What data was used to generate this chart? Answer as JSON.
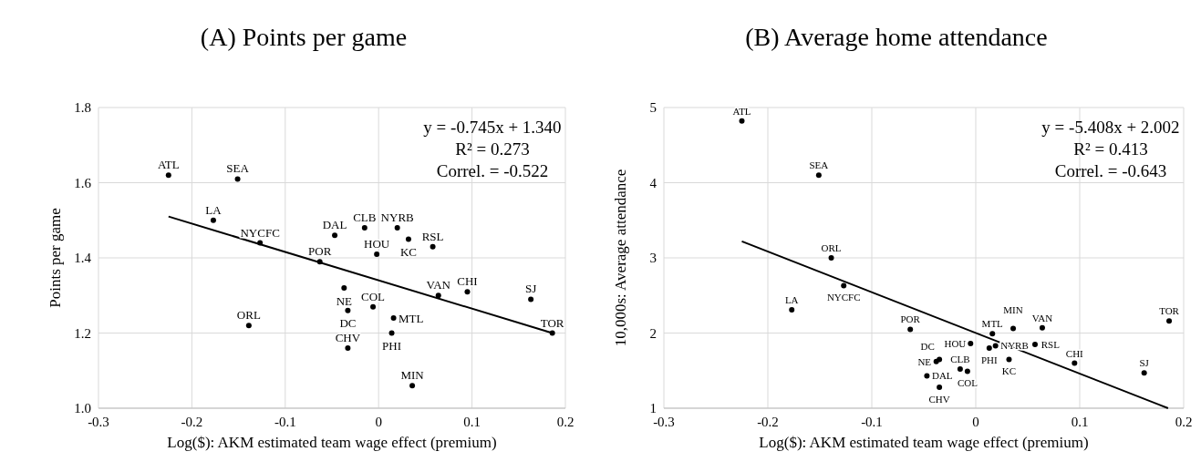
{
  "chart_data": [
    {
      "type": "scatter",
      "title": "(A) Points per game",
      "xlabel": "Log($): AKM estimated team wage effect (premium)",
      "ylabel": "Points per game",
      "xlim": [
        -0.3,
        0.2
      ],
      "xticks": [
        -0.3,
        -0.2,
        -0.1,
        {
          "value": 0,
          "label": "0"
        },
        0.1,
        0.2
      ],
      "ylim": [
        1.0,
        1.8
      ],
      "yticks": [
        {
          "value": 1.0,
          "label": "1.0"
        },
        1.2,
        1.4,
        1.6,
        1.8
      ],
      "grid": true,
      "marker": "circle",
      "annotations": [
        "y = -0.745x + 1.340",
        "R² = 0.273",
        "Correl. = -0.522"
      ],
      "series": [
        {
          "type": "scatter",
          "color": "#000000",
          "x": [
            -0.225,
            -0.151,
            -0.177,
            -0.127,
            -0.139,
            -0.063,
            -0.047,
            -0.015,
            0.02,
            0.032,
            0.058,
            -0.002,
            -0.037,
            -0.033,
            -0.006,
            0.016,
            0.014,
            -0.033,
            0.036,
            0.064,
            0.095,
            0.163,
            0.186
          ],
          "values": [
            1.62,
            1.61,
            1.5,
            1.44,
            1.22,
            1.39,
            1.46,
            1.48,
            1.48,
            1.45,
            1.43,
            1.41,
            1.32,
            1.26,
            1.27,
            1.24,
            1.2,
            1.16,
            1.06,
            1.3,
            1.31,
            1.29,
            1.2
          ],
          "value_labels": [
            "ATL",
            "SEA",
            "LA",
            "NYCFC",
            "ORL",
            "POR",
            "DAL",
            "CLB",
            "NYRB",
            "KC",
            "RSL",
            "HOU",
            "NE",
            "DC",
            "COL",
            "MTL",
            "PHI",
            "CHV",
            "MIN",
            "VAN",
            "CHI",
            "SJ",
            "TOR"
          ]
        },
        {
          "type": "line",
          "color": "#000000",
          "marker": "none",
          "x": [
            -0.225,
            0.186
          ],
          "values": [
            1.51,
            1.2
          ]
        }
      ]
    },
    {
      "type": "scatter",
      "title": "(B) Average home attendance",
      "xlabel": "Log($): AKM estimated team wage effect (premium)",
      "ylabel": "10,000s: Average attendance",
      "xlim": [
        -0.3,
        0.2
      ],
      "xticks": [
        -0.3,
        -0.2,
        -0.1,
        {
          "value": 0,
          "label": "0"
        },
        0.1,
        0.2
      ],
      "ylim": [
        1,
        5
      ],
      "yticks": [
        1,
        2,
        3,
        4,
        5
      ],
      "grid": true,
      "marker": "circle",
      "annotations": [
        "y = -5.408x + 2.002",
        "R² = 0.413",
        "Correl. = -0.643"
      ],
      "series": [
        {
          "type": "scatter",
          "color": "#000000",
          "x": [
            -0.225,
            -0.151,
            -0.177,
            -0.127,
            -0.139,
            -0.063,
            -0.047,
            -0.015,
            0.019,
            0.032,
            0.057,
            -0.005,
            -0.038,
            -0.035,
            -0.008,
            0.016,
            0.013,
            -0.035,
            0.036,
            0.064,
            0.095,
            0.162,
            0.186
          ],
          "values": [
            4.82,
            4.1,
            2.31,
            2.63,
            3.0,
            2.05,
            1.43,
            1.52,
            1.83,
            1.65,
            1.85,
            1.86,
            1.62,
            1.65,
            1.49,
            1.99,
            1.8,
            1.28,
            2.06,
            2.07,
            1.6,
            1.47,
            2.16
          ],
          "value_labels": [
            "ATL",
            "SEA",
            "LA",
            "NYCFC",
            "ORL",
            "POR",
            "DAL",
            "CLB",
            "NYRB",
            "KC",
            "RSL",
            "HOU",
            "NE",
            "DC",
            "COL",
            "MTL",
            "PHI",
            "CHV",
            "MIN",
            "VAN",
            "CHI",
            "SJ",
            "TOR"
          ]
        },
        {
          "type": "line",
          "color": "#000000",
          "marker": "none",
          "x": [
            -0.225,
            0.185
          ],
          "values": [
            3.22,
            1.0
          ]
        }
      ]
    }
  ]
}
